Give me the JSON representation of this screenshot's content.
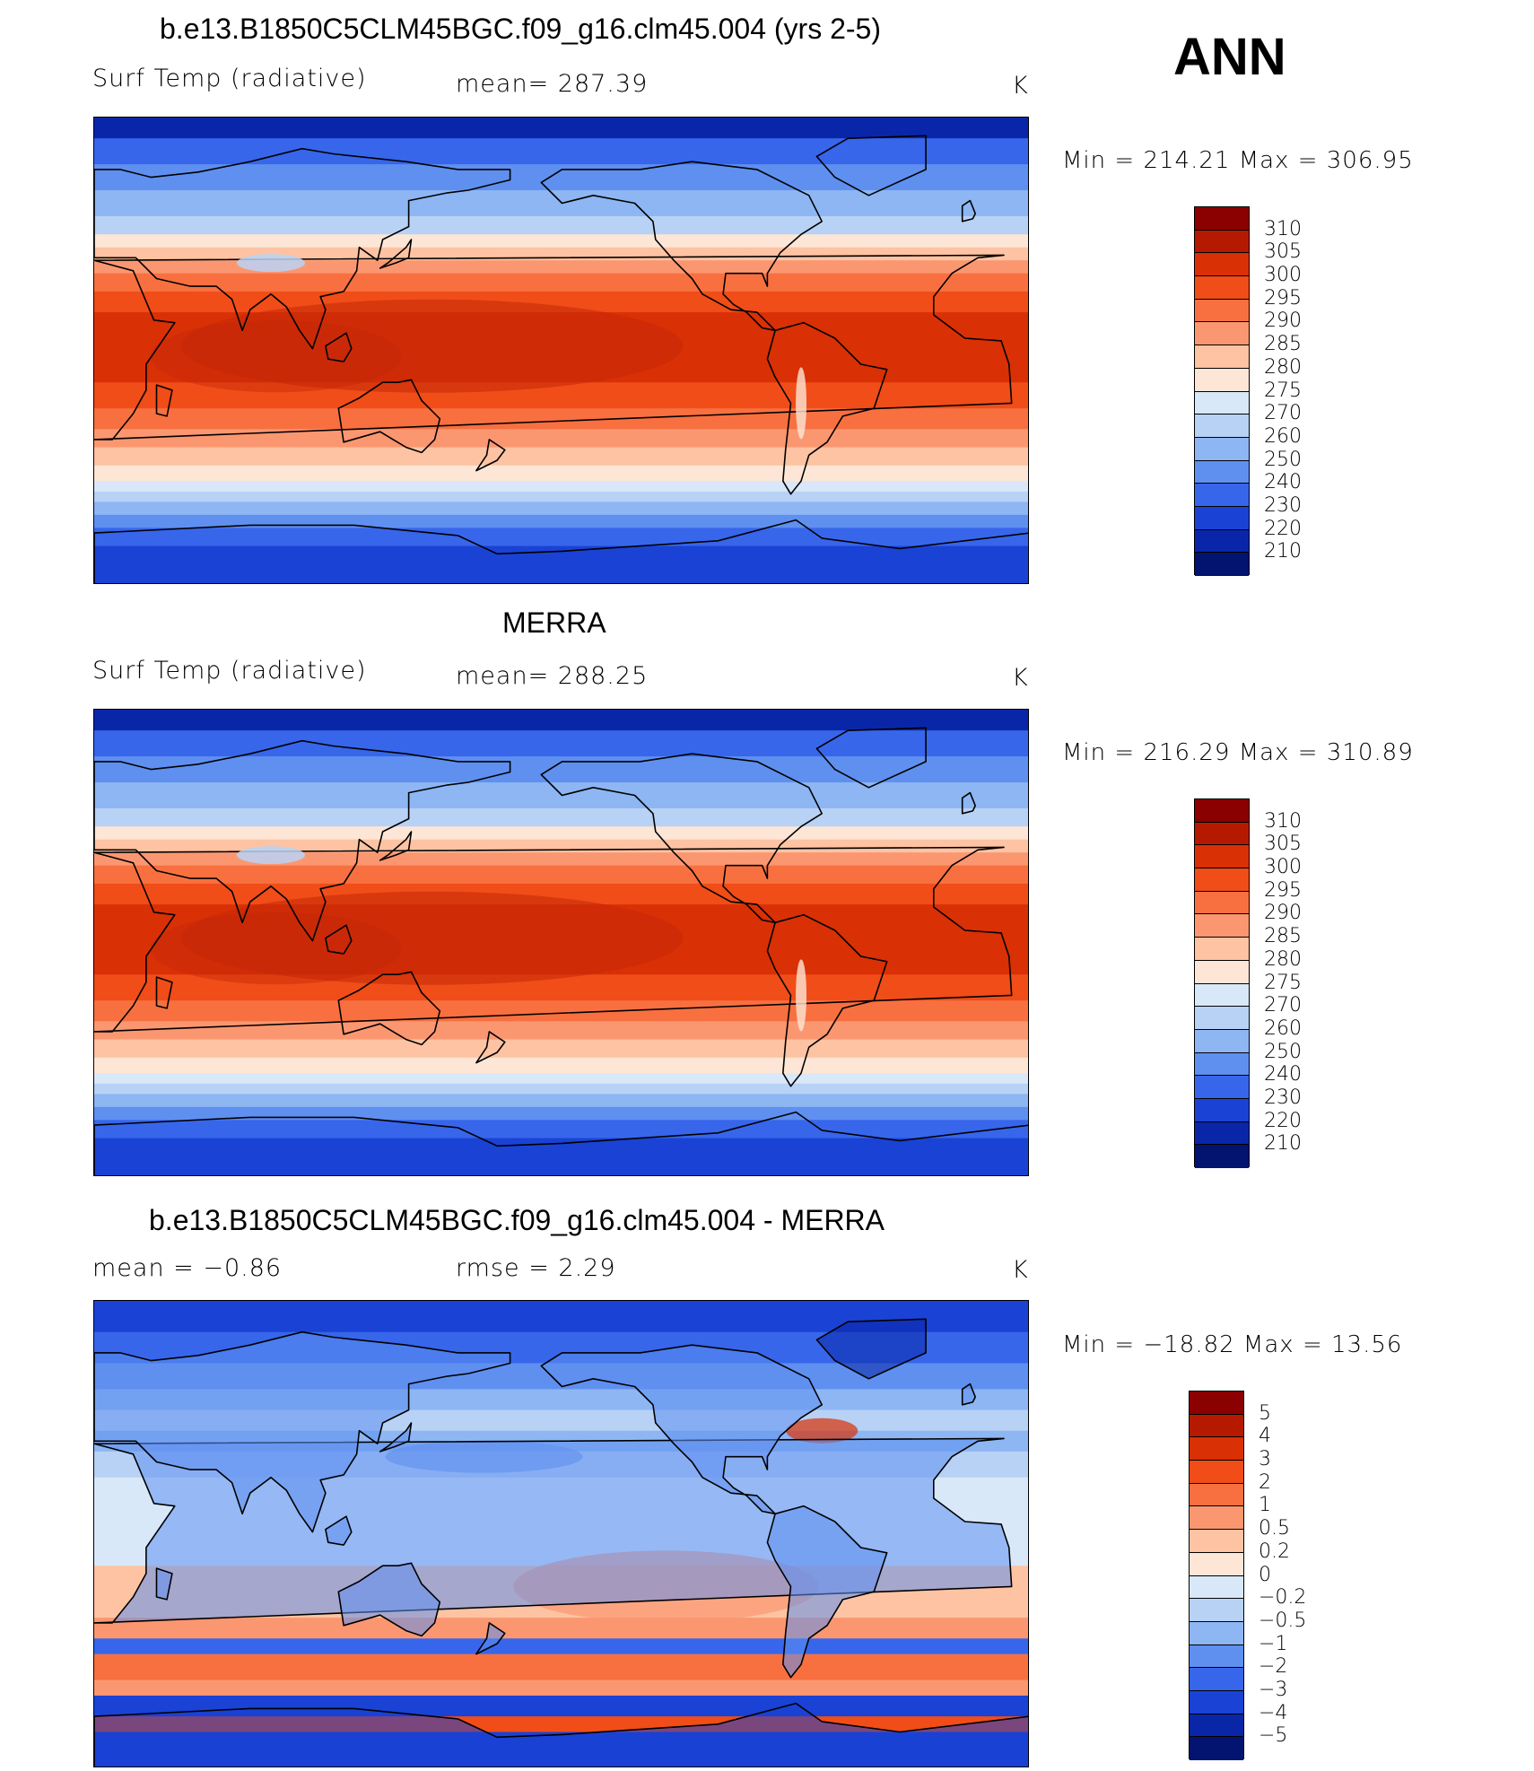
{
  "season": "ANN",
  "panels": [
    {
      "title": "b.e13.B1850C5CLM45BGC.f09_g16.clm45.004 (yrs 2-5)",
      "left_label": "Surf Temp (radiative)",
      "mid_label": "mean= 287.39",
      "units": "K",
      "minmax": "Min = 214.21 Max = 306.95",
      "scheme": "abs",
      "colorbar": {
        "labels": [
          "310",
          "305",
          "300",
          "295",
          "290",
          "285",
          "280",
          "275",
          "270",
          "260",
          "250",
          "240",
          "230",
          "220",
          "210"
        ],
        "colors": [
          "#8b0000",
          "#b51a00",
          "#d93006",
          "#f04d18",
          "#f87040",
          "#fb9770",
          "#fdc3a3",
          "#fde6d6",
          "#d9e8f8",
          "#b8d2f5",
          "#8db6f3",
          "#5f90f0",
          "#3766eb",
          "#1a42d4",
          "#0a26a8",
          "#021370"
        ]
      }
    },
    {
      "title": "MERRA",
      "left_label": "Surf Temp (radiative)",
      "mid_label": "mean= 288.25",
      "units": "K",
      "minmax": "Min = 216.29 Max = 310.89",
      "scheme": "abs",
      "colorbar": {
        "labels": [
          "310",
          "305",
          "300",
          "295",
          "290",
          "285",
          "280",
          "275",
          "270",
          "260",
          "250",
          "240",
          "230",
          "220",
          "210"
        ],
        "colors": [
          "#8b0000",
          "#b51a00",
          "#d93006",
          "#f04d18",
          "#f87040",
          "#fb9770",
          "#fdc3a3",
          "#fde6d6",
          "#d9e8f8",
          "#b8d2f5",
          "#8db6f3",
          "#5f90f0",
          "#3766eb",
          "#1a42d4",
          "#0a26a8",
          "#021370"
        ]
      }
    },
    {
      "title": "b.e13.B1850C5CLM45BGC.f09_g16.clm45.004 - MERRA",
      "left_label": "mean =    −0.86",
      "mid_label": "rmse =     2.29",
      "units": "K",
      "minmax": "Min = −18.82 Max =   13.56",
      "scheme": "diff",
      "colorbar": {
        "labels": [
          "5",
          "4",
          "3",
          "2",
          "1",
          "0.5",
          "0.2",
          "0",
          "−0.2",
          "−0.5",
          "−1",
          "−2",
          "−3",
          "−4",
          "−5"
        ],
        "colors": [
          "#8b0000",
          "#b51a00",
          "#d93006",
          "#f04d18",
          "#f87040",
          "#fb9770",
          "#fdc3a3",
          "#fde6d6",
          "#d9e8f8",
          "#b8d2f5",
          "#8db6f3",
          "#5f90f0",
          "#3766eb",
          "#1a42d4",
          "#0a26a8",
          "#021370"
        ]
      }
    }
  ]
}
